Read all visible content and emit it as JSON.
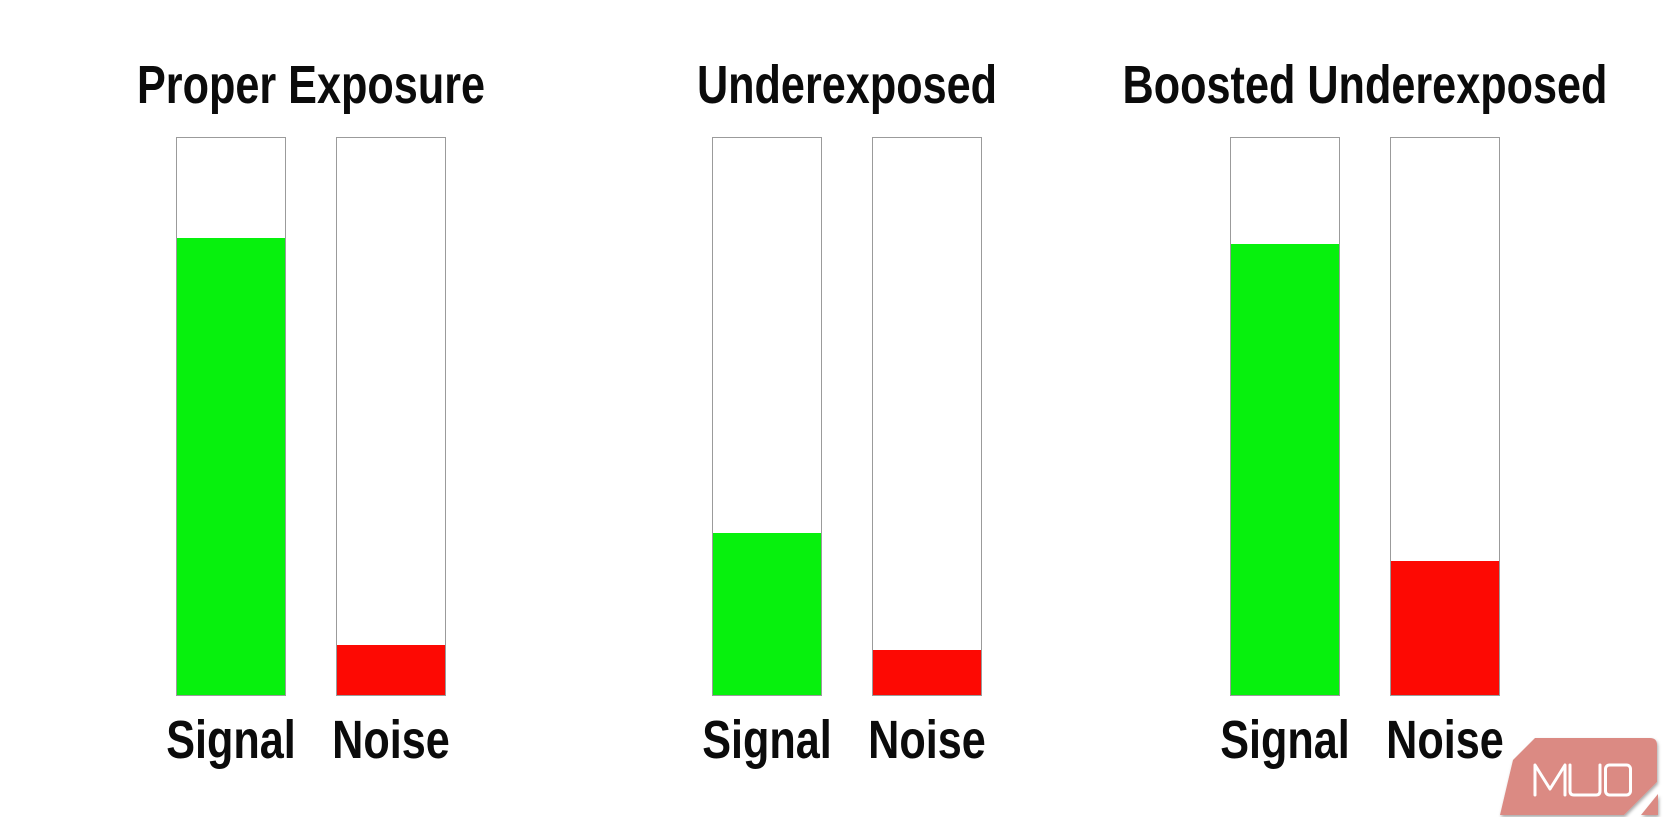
{
  "chart_data": {
    "type": "bar",
    "categories": [
      "Signal",
      "Noise"
    ],
    "ylim": [
      0,
      100
    ],
    "grid": false,
    "legend": "none",
    "groups": [
      {
        "title": "Proper Exposure",
        "values": [
          82,
          9
        ]
      },
      {
        "title": "Underexposed",
        "values": [
          29,
          8
        ]
      },
      {
        "title": "Boosted Underexposed",
        "values": [
          81,
          24
        ]
      }
    ],
    "colors": {
      "signal_fill": "#07f10d",
      "noise_fill": "#fd0903",
      "bar_outline": "#9b9b9b",
      "text": "#0b0b0b"
    }
  },
  "logo": {
    "text": "MUO",
    "badge_color": "#db8a83",
    "text_color": "#ffffff"
  }
}
